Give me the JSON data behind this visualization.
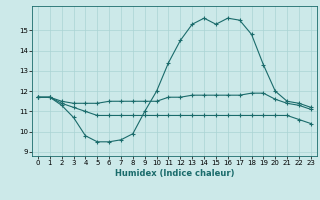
{
  "xlabel": "Humidex (Indice chaleur)",
  "ylabel": "",
  "background_color": "#cce9e9",
  "line_color": "#1a6b6b",
  "grid_color": "#aad4d4",
  "x_ticks": [
    0,
    1,
    2,
    3,
    4,
    5,
    6,
    7,
    8,
    9,
    10,
    11,
    12,
    13,
    14,
    15,
    16,
    17,
    18,
    19,
    20,
    21,
    22,
    23
  ],
  "y_ticks": [
    9,
    10,
    11,
    12,
    13,
    14,
    15
  ],
  "ylim": [
    8.8,
    16.2
  ],
  "xlim": [
    -0.5,
    23.5
  ],
  "series": [
    {
      "x": [
        0,
        1,
        2,
        3,
        4,
        5,
        6,
        7,
        8,
        9,
        10,
        11,
        12,
        13,
        14,
        15,
        16,
        17,
        18,
        19,
        20,
        21,
        22,
        23
      ],
      "y": [
        11.7,
        11.7,
        11.3,
        10.7,
        9.8,
        9.5,
        9.5,
        9.6,
        9.9,
        11.0,
        12.0,
        13.4,
        14.5,
        15.3,
        15.6,
        15.3,
        15.6,
        15.5,
        14.8,
        13.3,
        12.0,
        11.5,
        11.4,
        11.2
      ]
    },
    {
      "x": [
        0,
        1,
        2,
        3,
        4,
        5,
        6,
        7,
        8,
        9,
        10,
        11,
        12,
        13,
        14,
        15,
        16,
        17,
        18,
        19,
        20,
        21,
        22,
        23
      ],
      "y": [
        11.7,
        11.7,
        11.5,
        11.4,
        11.4,
        11.4,
        11.5,
        11.5,
        11.5,
        11.5,
        11.5,
        11.7,
        11.7,
        11.8,
        11.8,
        11.8,
        11.8,
        11.8,
        11.9,
        11.9,
        11.6,
        11.4,
        11.3,
        11.1
      ]
    },
    {
      "x": [
        0,
        1,
        2,
        3,
        4,
        5,
        6,
        7,
        8,
        9,
        10,
        11,
        12,
        13,
        14,
        15,
        16,
        17,
        18,
        19,
        20,
        21,
        22,
        23
      ],
      "y": [
        11.7,
        11.7,
        11.4,
        11.2,
        11.0,
        10.8,
        10.8,
        10.8,
        10.8,
        10.8,
        10.8,
        10.8,
        10.8,
        10.8,
        10.8,
        10.8,
        10.8,
        10.8,
        10.8,
        10.8,
        10.8,
        10.8,
        10.6,
        10.4
      ]
    }
  ],
  "marker": "+",
  "markersize": 3,
  "markeredgewidth": 0.8,
  "linewidth": 0.8,
  "xlabel_fontsize": 6,
  "tick_fontsize": 5,
  "fig_width": 3.2,
  "fig_height": 2.0,
  "dpi": 100
}
